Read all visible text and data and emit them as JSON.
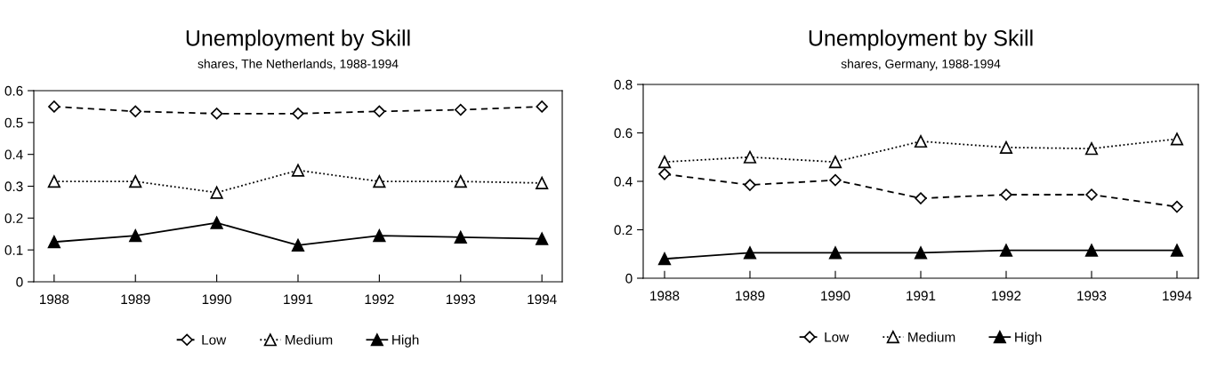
{
  "chart_data": [
    {
      "type": "line",
      "title": "Unemployment by Skill",
      "subtitle": "shares, The Netherlands, 1988-1994",
      "categories": [
        "1988",
        "1989",
        "1990",
        "1991",
        "1992",
        "1993",
        "1994"
      ],
      "ylim": [
        0,
        0.6
      ],
      "yticks": [
        {
          "value": 0,
          "label": "0"
        },
        0.1,
        0.2,
        0.3,
        0.4,
        0.5,
        0.6
      ],
      "grid": false,
      "legend": "bottom",
      "series": [
        {
          "name": "Low",
          "color": "#000000",
          "marker": "diamond",
          "line_style": "dashed",
          "values": [
            0.55,
            0.535,
            0.528,
            0.528,
            0.535,
            0.54,
            0.55
          ]
        },
        {
          "name": "Medium",
          "color": "#000000",
          "marker": "triangle",
          "line_style": "dotted",
          "values": [
            0.315,
            0.315,
            0.28,
            0.35,
            0.315,
            0.315,
            0.31
          ]
        },
        {
          "name": "High",
          "color": "#000000",
          "marker": "triangle",
          "line_style": "solid",
          "values": [
            0.125,
            0.145,
            0.185,
            0.115,
            0.145,
            0.14,
            0.135
          ]
        }
      ]
    },
    {
      "type": "line",
      "title": "Unemployment by Skill",
      "subtitle": "shares, Germany, 1988-1994",
      "categories": [
        "1988",
        "1989",
        "1990",
        "1991",
        "1992",
        "1993",
        "1994"
      ],
      "ylim": [
        0,
        0.8
      ],
      "yticks": [
        {
          "value": 0,
          "label": "0"
        },
        0.2,
        0.4,
        0.6,
        0.8
      ],
      "grid": false,
      "legend": "bottom",
      "series": [
        {
          "name": "Low",
          "color": "#000000",
          "marker": "diamond",
          "line_style": "dashed",
          "values": [
            0.43,
            0.385,
            0.405,
            0.33,
            0.345,
            0.345,
            0.295
          ]
        },
        {
          "name": "Medium",
          "color": "#000000",
          "marker": "triangle",
          "line_style": "dotted",
          "values": [
            0.48,
            0.5,
            0.48,
            0.565,
            0.54,
            0.535,
            0.575
          ]
        },
        {
          "name": "High",
          "color": "#000000",
          "marker": "triangle",
          "line_style": "solid",
          "values": [
            0.08,
            0.105,
            0.105,
            0.105,
            0.115,
            0.115,
            0.115
          ]
        }
      ]
    }
  ]
}
